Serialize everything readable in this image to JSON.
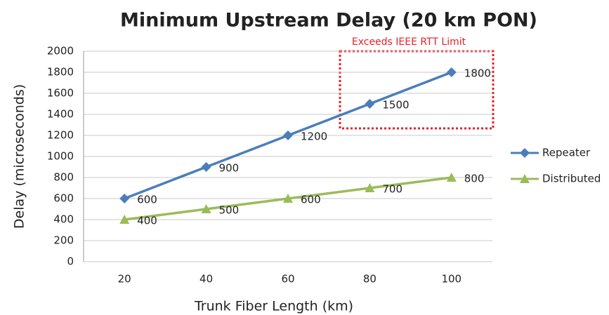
{
  "chart_data": {
    "type": "line",
    "title": "Minimum Upstream Delay (20 km PON)",
    "xlabel": "Trunk Fiber Length (km)",
    "ylabel": "Delay (microseconds)",
    "annotation": "Exceeds IEEE RTT Limit",
    "categories": [
      "20",
      "40",
      "60",
      "80",
      "100"
    ],
    "series": [
      {
        "name": "Repeater",
        "color": "#4a7ebb",
        "marker": "diamond",
        "values": [
          600,
          900,
          1200,
          1500,
          1800
        ]
      },
      {
        "name": "Distributed",
        "color": "#9bbb59",
        "marker": "triangle",
        "values": [
          400,
          500,
          600,
          700,
          800
        ]
      }
    ],
    "ylim": [
      0,
      2000
    ],
    "yticks": [
      0,
      200,
      400,
      600,
      800,
      1000,
      1200,
      1400,
      1600,
      1800,
      2000
    ],
    "grid": true,
    "legend": "right"
  }
}
